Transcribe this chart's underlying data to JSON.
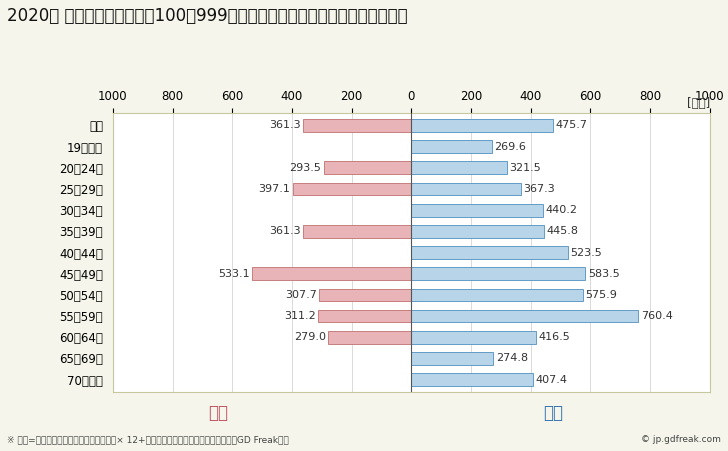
{
  "title": "2020年 民間企業（従業者数100～999人）フルタイム労働者の男女別平均年収",
  "unit_label": "[万円]",
  "categories": [
    "全体",
    "19歳以下",
    "20～24歳",
    "25～29歳",
    "30～34歳",
    "35～39歳",
    "40～44歳",
    "45～49歳",
    "50～54歳",
    "55～59歳",
    "60～64歳",
    "65～69歳",
    "70歳以上"
  ],
  "female_values": [
    361.3,
    0,
    293.5,
    397.1,
    0,
    361.3,
    0,
    533.1,
    307.7,
    311.2,
    279.0,
    0,
    0
  ],
  "male_values": [
    475.7,
    269.6,
    321.5,
    367.3,
    440.2,
    445.8,
    523.5,
    583.5,
    575.9,
    760.4,
    416.5,
    274.8,
    407.4
  ],
  "female_color": "#e8b4b8",
  "female_border_color": "#c07070",
  "male_color": "#b8d4e8",
  "male_border_color": "#5090c0",
  "female_label": "女性",
  "male_label": "男性",
  "female_label_color": "#c05060",
  "male_label_color": "#3070b0",
  "xlim": [
    -1000,
    1000
  ],
  "xticks": [
    -1000,
    -800,
    -600,
    -400,
    -200,
    0,
    200,
    400,
    600,
    800,
    1000
  ],
  "xticklabels": [
    "1000",
    "800",
    "600",
    "400",
    "200",
    "0",
    "200",
    "400",
    "600",
    "800",
    "1000"
  ],
  "background_color": "#f5f5eb",
  "plot_bg_color": "#ffffff",
  "footnote": "※ 年収=「きまって支給する現金給与額」× 12+「年間賞与その他特別給与額」としてGD Freak推計",
  "copyright": "© jp.gdfreak.com",
  "title_fontsize": 12,
  "tick_fontsize": 8.5,
  "label_fontsize": 8,
  "category_fontsize": 8.5,
  "legend_fontsize": 12
}
